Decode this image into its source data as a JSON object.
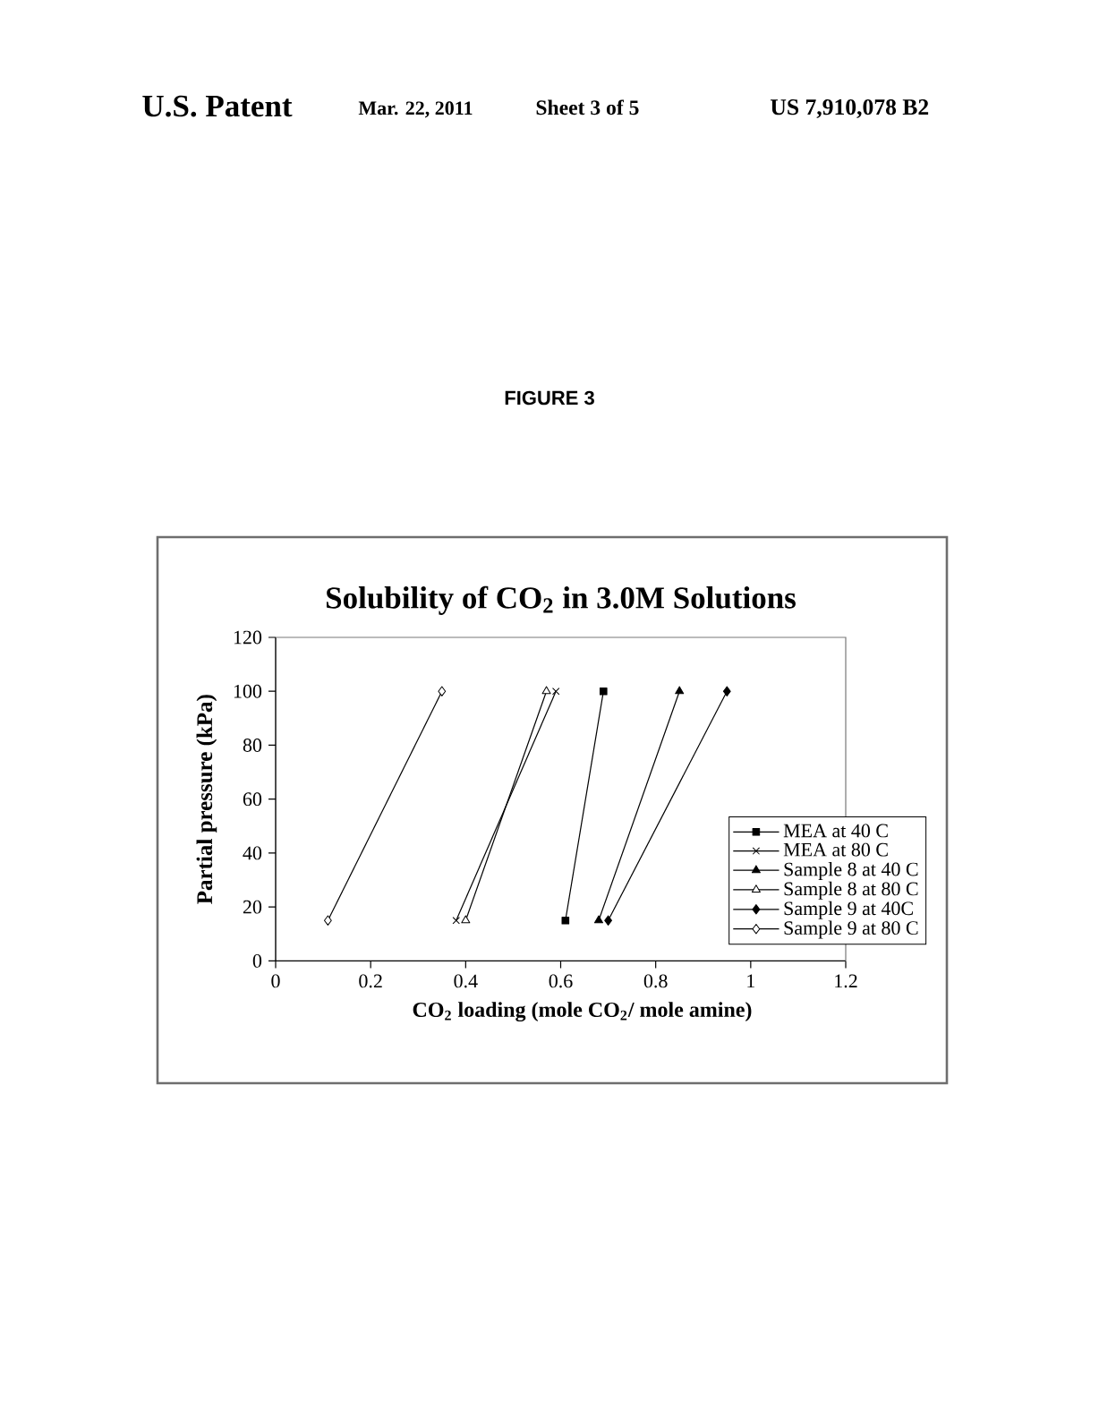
{
  "chart_data": {
    "type": "line",
    "title": "Solubility of CO$_{2}$ in 3.0M Solutions",
    "xlabel": "CO$_{2}$ loading (mole CO$_{2}$/ mole amine)",
    "ylabel": "Partial pressure (kPa)",
    "annotations": [
      "U.S. Patent",
      "Mar. 22, 2011",
      "Sheet 3 of 5",
      "US 7,910,078 B2",
      "FIGURE 3"
    ],
    "series": [
      {
        "name": "MEA at 40 C",
        "color": "#000000",
        "marker": "square",
        "x": [
          0.61,
          0.69
        ],
        "values": [
          15,
          100
        ]
      },
      {
        "name": "MEA at 80 C",
        "color": "#000000",
        "marker": "cross",
        "x": [
          0.38,
          0.59
        ],
        "values": [
          15,
          100
        ]
      },
      {
        "name": "Sample 8 at 40 C",
        "color": "#000000",
        "marker": "triangle",
        "x": [
          0.68,
          0.85
        ],
        "values": [
          15,
          100
        ]
      },
      {
        "name": "Sample 8 at 80 C",
        "color": "#000000",
        "marker": "triangle-open",
        "x": [
          0.4,
          0.57
        ],
        "values": [
          15,
          100
        ]
      },
      {
        "name": "Sample 9 at 40C",
        "color": "#000000",
        "marker": "diamond",
        "x": [
          0.7,
          0.95
        ],
        "values": [
          15,
          100
        ]
      },
      {
        "name": "Sample 9 at 80 C",
        "color": "#000000",
        "marker": "diamond-open",
        "x": [
          0.11,
          0.35
        ],
        "values": [
          15,
          100
        ]
      }
    ],
    "xlim": [
      0,
      1.2
    ],
    "ylim": [
      0,
      120
    ],
    "xticks": [
      0,
      0.2,
      0.4,
      0.6,
      0.8,
      1,
      1.2
    ],
    "yticks": [
      0,
      20,
      40,
      60,
      80,
      100,
      120
    ],
    "legend": "bottom right",
    "line_style": "solid"
  }
}
